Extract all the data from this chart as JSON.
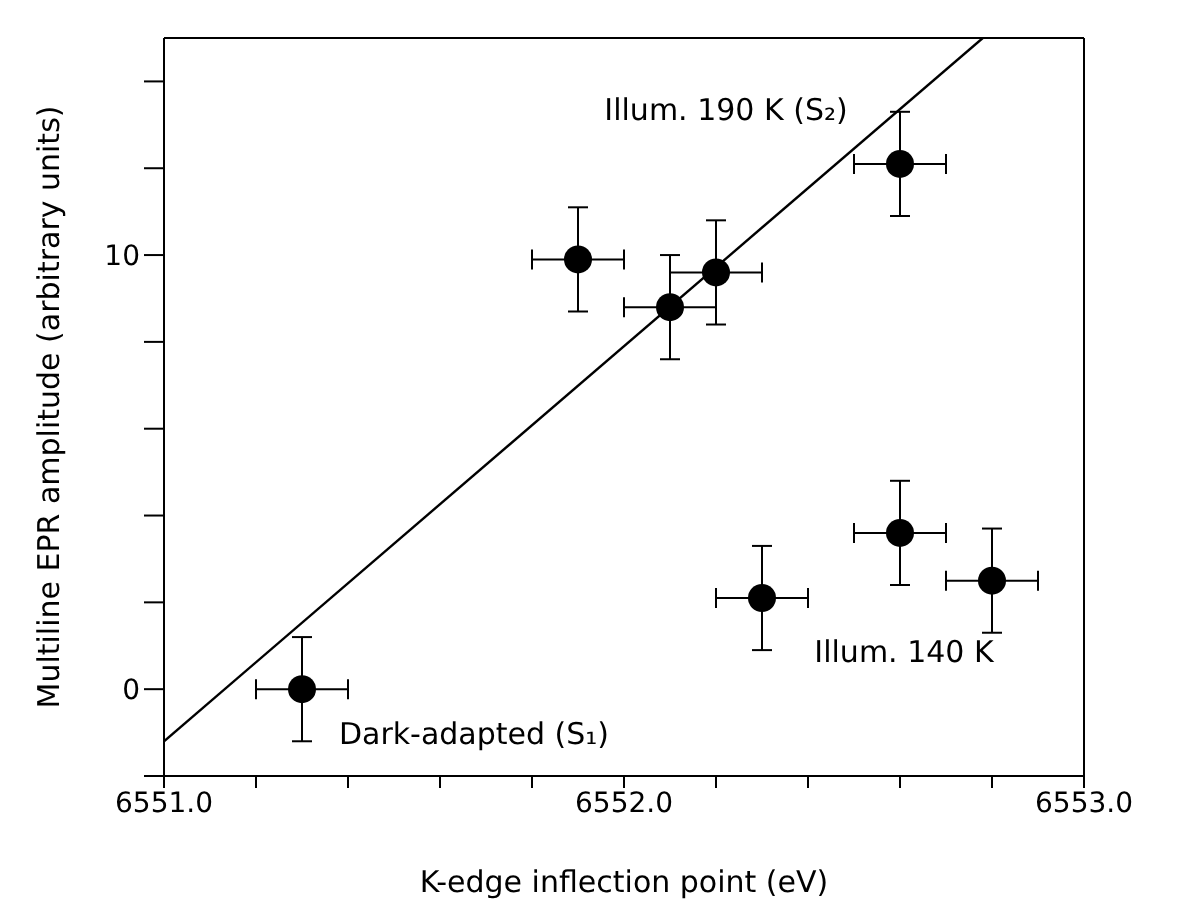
{
  "chart_data": {
    "type": "scatter",
    "xlabel": "K-edge inflection point  (eV)",
    "ylabel": "Multiline EPR amplitude (arbitrary units)",
    "xlim": [
      6551.0,
      6553.0
    ],
    "xticks": [
      {
        "value": 6551.0,
        "label": "6551.0"
      },
      {
        "value": 6551.2,
        "label": null
      },
      {
        "value": 6551.4,
        "label": null
      },
      {
        "value": 6551.6,
        "label": null
      },
      {
        "value": 6551.8,
        "label": null
      },
      {
        "value": 6552.0,
        "label": "6552.0"
      },
      {
        "value": 6552.2,
        "label": null
      },
      {
        "value": 6552.4,
        "label": null
      },
      {
        "value": 6552.6,
        "label": null
      },
      {
        "value": 6552.8,
        "label": null
      },
      {
        "value": 6553.0,
        "label": "6553.0"
      }
    ],
    "ylim": [
      -2,
      15
    ],
    "yticks": [
      {
        "value": -2,
        "label": null
      },
      0,
      {
        "value": 2,
        "label": null
      },
      {
        "value": 4,
        "label": null
      },
      {
        "value": 6,
        "label": null
      },
      {
        "value": 8,
        "label": null
      },
      10,
      {
        "value": 12,
        "label": null
      },
      {
        "value": 14,
        "label": null
      }
    ],
    "grid": false,
    "legend": false,
    "series": [
      {
        "color": "#000000",
        "marker": "circle",
        "x": [
          6551.3,
          6552.3,
          6552.6,
          6552.8,
          6551.9,
          6552.1,
          6552.2,
          6552.6
        ],
        "values": [
          0,
          2.1,
          3.6,
          2.5,
          9.9,
          8.8,
          9.6,
          12.1
        ],
        "errors": [
          1.2,
          1.2,
          1.2,
          1.2,
          1.2,
          1.2,
          1.2,
          1.2
        ],
        "xerrors": [
          0.1,
          0.1,
          0.1,
          0.1,
          0.1,
          0.1,
          0.1,
          0.1
        ]
      },
      {
        "type": "line",
        "color": "#000000",
        "marker": "none",
        "line_style": "solid",
        "x": [
          6551.0,
          6552.78
        ],
        "values": [
          -1.2,
          15
        ]
      }
    ],
    "annotations": [
      "Illum. 190 K (S₂)",
      "Dark-adapted (S₁)",
      "Illum. 140 K"
    ]
  }
}
